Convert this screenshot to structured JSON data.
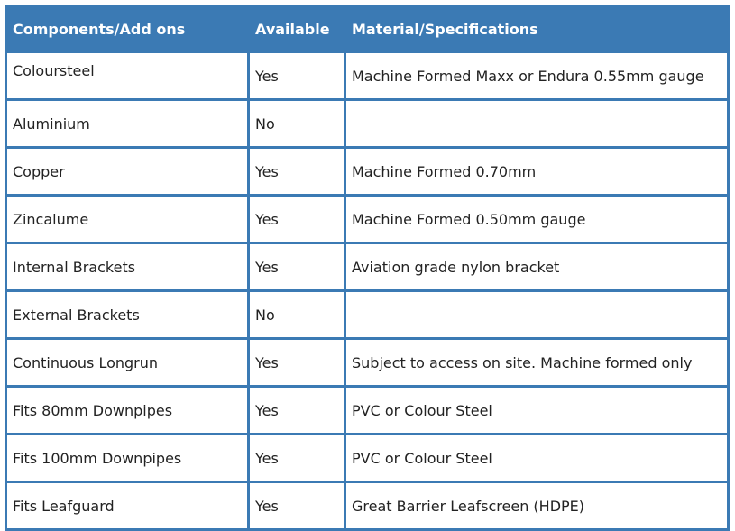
{
  "table": {
    "header": [
      "Components/Add ons",
      "Available",
      "Material/Specifications"
    ],
    "rows": [
      {
        "component": "Coloursteel",
        "available": "Yes",
        "material": "Machine Formed Maxx or Endura 0.55mm gauge"
      },
      {
        "component": "Aluminium",
        "available": "No"
      },
      {
        "component": "Copper",
        "available": "Yes",
        "material": "Machine Formed 0.70mm"
      },
      {
        "component": "Zincalume",
        "available": "Yes",
        "material": "Machine Formed 0.50mm gauge"
      },
      {
        "component": "Internal Brackets",
        "available": "Yes",
        "material": "Aviation grade nylon bracket"
      },
      {
        "component": "External Brackets",
        "available": "No"
      },
      {
        "component": "Continuous Longrun",
        "available": "Yes",
        "material": "Subject to access on site. Machine formed only"
      },
      {
        "component": "Fits 80mm Downpipes",
        "available": "Yes",
        "material": "PVC or Colour Steel"
      },
      {
        "component": "Fits 100mm Downpipes",
        "available": "Yes",
        "material": "PVC or Colour Steel"
      },
      {
        "component": "Fits Leafguard",
        "available": "Yes",
        "material": "Great Barrier Leafscreen (HDPE)"
      }
    ]
  }
}
